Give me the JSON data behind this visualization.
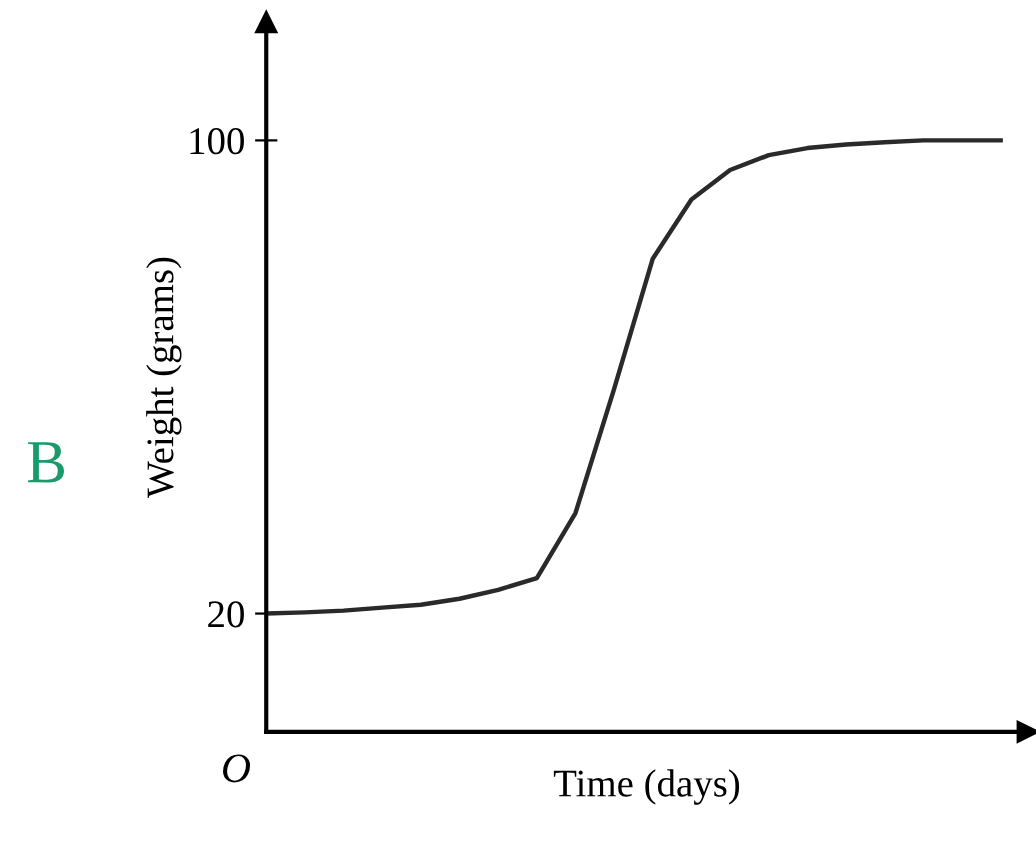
{
  "chart_data": {
    "type": "line",
    "xlabel": "Time (days)",
    "ylabel": "Weight (grams)",
    "categories": [
      null,
      null,
      null,
      null,
      null,
      null,
      null,
      null,
      null,
      null,
      null,
      null,
      null,
      null,
      null,
      null,
      null,
      null,
      null,
      null
    ],
    "series": [
      {
        "color": "#2a2a2a",
        "values": [
          20,
          20.2,
          20.5,
          21,
          21.5,
          22.5,
          24,
          26,
          37,
          58,
          80,
          90,
          95,
          97.5,
          98.7,
          99.3,
          99.7,
          100,
          100,
          100
        ]
      }
    ],
    "ylim": [
      0,
      120
    ],
    "yticks": [
      20,
      100
    ],
    "grid": false,
    "marker": "none",
    "line_style": "solid",
    "annotations": [
      "O",
      "B"
    ]
  }
}
